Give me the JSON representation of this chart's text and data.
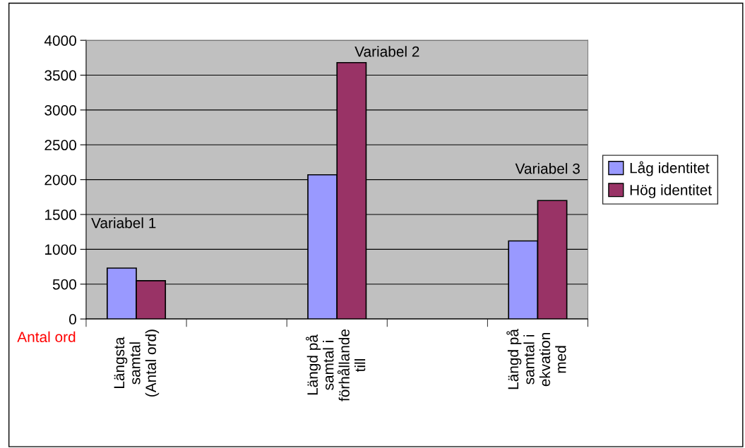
{
  "chart_data": {
    "type": "bar",
    "categories": [
      "Längsta\nsamtal\n(Antal ord)",
      null,
      "Längd på\nsamtal i\nförhållande\ntill",
      null,
      "Längd på\nsamtal i\nekvation\nmed"
    ],
    "series": [
      {
        "name": "Låg identitet",
        "color": "#9999ff",
        "values": [
          730,
          null,
          2070,
          null,
          1120
        ]
      },
      {
        "name": "Hög identitet",
        "color": "#993366",
        "values": [
          550,
          null,
          3680,
          null,
          1700
        ]
      }
    ],
    "ylim": [
      0,
      4000
    ],
    "yticks": [
      0,
      500,
      1000,
      1500,
      2000,
      2500,
      3000,
      3500,
      4000
    ],
    "grid": "y",
    "legend": "right",
    "annotations": [
      "Variabel 1",
      "Variabel 2",
      "Variabel 3",
      "Antal ord"
    ]
  }
}
